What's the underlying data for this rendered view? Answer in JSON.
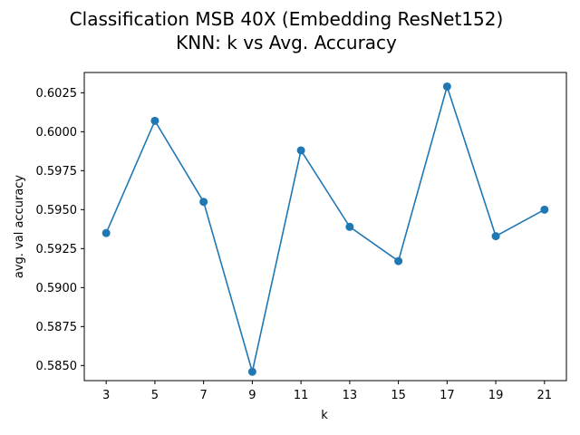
{
  "chart_data": {
    "type": "line",
    "title_lines": [
      "Classification MSB 40X (Embedding ResNet152)",
      "KNN: k vs  Avg. Accuracy"
    ],
    "xlabel": "k",
    "ylabel": "avg. val accuracy",
    "x": [
      3,
      5,
      7,
      9,
      11,
      13,
      15,
      17,
      19,
      21
    ],
    "series": [
      {
        "values": [
          0.5935,
          0.6007,
          0.5955,
          0.5846,
          0.5988,
          0.5939,
          0.5917,
          0.6029,
          0.5933,
          0.595
        ],
        "color": "#1f77b4",
        "marker": "circle"
      }
    ],
    "xticks": [
      "3",
      "5",
      "7",
      "9",
      "11",
      "13",
      "15",
      "17",
      "19",
      "21"
    ],
    "yticks": [
      "0.5850",
      "0.5875",
      "0.5900",
      "0.5925",
      "0.5950",
      "0.5975",
      "0.6000",
      "0.6025"
    ],
    "xlim": [
      2.1,
      21.9
    ],
    "ylim": [
      0.58403,
      0.6038
    ],
    "grid": false,
    "legend": false
  }
}
